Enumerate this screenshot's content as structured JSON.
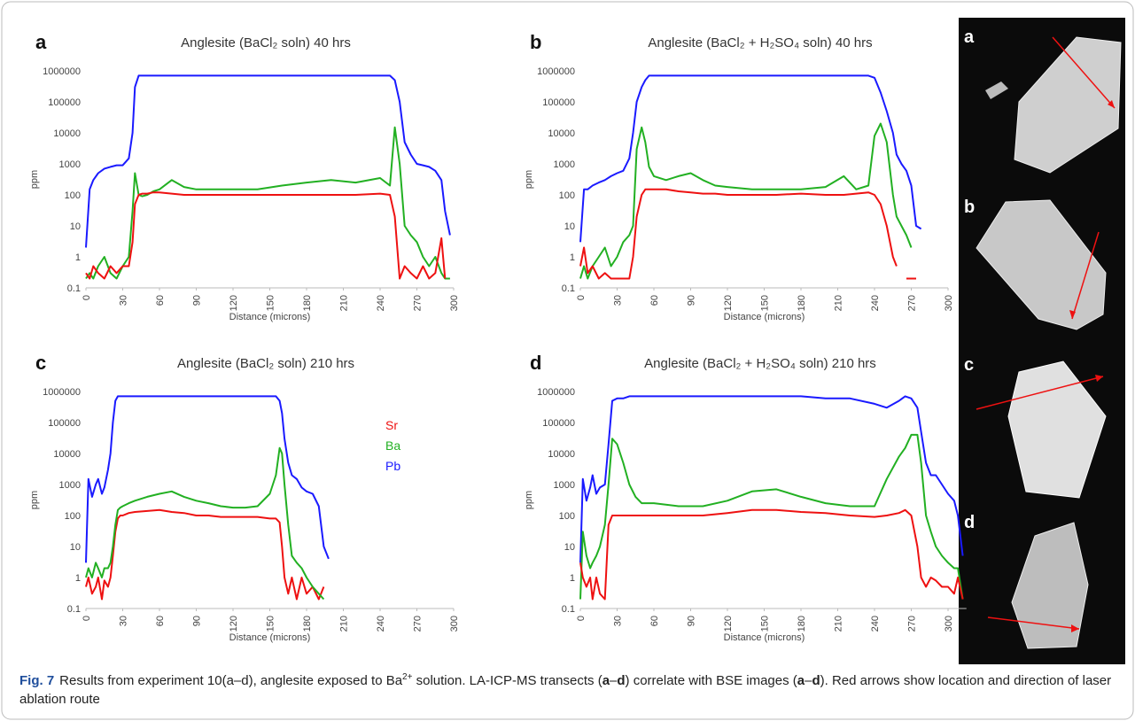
{
  "chart_data": [
    {
      "type": "line",
      "panel": "a",
      "title": "Anglesite (BaCl₂ soln) 40 hrs",
      "x_label": "Distance (microns)",
      "y_label": "ppm",
      "log_y": true,
      "grid": false,
      "legend": false,
      "xlim": [
        0,
        300
      ],
      "xticks": [
        0,
        30,
        60,
        90,
        120,
        150,
        180,
        210,
        240,
        270,
        300
      ],
      "ylim": [
        0.1,
        1000000
      ],
      "yticks": [
        0.1,
        1,
        10,
        100,
        1000,
        10000,
        100000,
        1000000
      ],
      "x": [
        0,
        3,
        6,
        10,
        15,
        20,
        25,
        30,
        35,
        38,
        40,
        43,
        46,
        50,
        55,
        60,
        70,
        80,
        90,
        100,
        120,
        140,
        160,
        180,
        200,
        220,
        240,
        248,
        252,
        256,
        260,
        265,
        270,
        275,
        280,
        285,
        290,
        293,
        297
      ],
      "series": [
        {
          "name": "Pb",
          "color": "#1a1aff",
          "values": [
            2,
            150,
            300,
            500,
            700,
            800,
            900,
            900,
            1500,
            10000,
            300000,
            700000,
            700000,
            700000,
            700000,
            700000,
            700000,
            700000,
            700000,
            700000,
            700000,
            700000,
            700000,
            700000,
            700000,
            700000,
            700000,
            700000,
            500000,
            100000,
            5000,
            2000,
            1000,
            900,
            800,
            600,
            300,
            30,
            5
          ]
        },
        {
          "name": "Ba",
          "color": "#22b022",
          "values": [
            0.2,
            0.3,
            0.2,
            0.5,
            1,
            0.3,
            0.2,
            0.5,
            1,
            30,
            500,
            100,
            90,
            100,
            130,
            150,
            300,
            180,
            150,
            150,
            150,
            150,
            200,
            250,
            300,
            250,
            350,
            200,
            15000,
            1000,
            10,
            5,
            3,
            1,
            0.5,
            1,
            0.3,
            0.2,
            0.2
          ]
        },
        {
          "name": "Sr",
          "color": "#ee1111",
          "values": [
            0.3,
            0.2,
            0.5,
            0.3,
            0.2,
            0.5,
            0.3,
            0.5,
            0.5,
            3,
            50,
            100,
            110,
            110,
            120,
            120,
            110,
            100,
            100,
            100,
            100,
            100,
            100,
            100,
            100,
            100,
            110,
            100,
            20,
            0.2,
            0.5,
            0.3,
            0.2,
            0.5,
            0.2,
            0.3,
            4,
            0.2,
            null
          ]
        }
      ]
    },
    {
      "type": "line",
      "panel": "b",
      "title": "Anglesite (BaCl₂ + H₂SO₄ soln) 40 hrs",
      "x_label": "Distance (microns)",
      "y_label": "ppm",
      "log_y": true,
      "grid": false,
      "legend": false,
      "xlim": [
        0,
        300
      ],
      "xticks": [
        0,
        30,
        60,
        90,
        120,
        150,
        180,
        210,
        240,
        270,
        300
      ],
      "ylim": [
        0.1,
        1000000
      ],
      "yticks": [
        0.1,
        1,
        10,
        100,
        1000,
        10000,
        100000,
        1000000
      ],
      "x": [
        0,
        3,
        6,
        10,
        15,
        20,
        25,
        30,
        35,
        40,
        43,
        46,
        50,
        53,
        56,
        60,
        70,
        80,
        90,
        100,
        110,
        120,
        140,
        160,
        180,
        200,
        215,
        225,
        235,
        240,
        245,
        250,
        255,
        258,
        262,
        266,
        270,
        274,
        278
      ],
      "series": [
        {
          "name": "Pb",
          "color": "#1a1aff",
          "values": [
            3,
            150,
            150,
            200,
            250,
            300,
            400,
            500,
            600,
            1500,
            10000,
            100000,
            300000,
            500000,
            700000,
            700000,
            700000,
            700000,
            700000,
            700000,
            700000,
            700000,
            700000,
            700000,
            700000,
            700000,
            700000,
            700000,
            700000,
            600000,
            200000,
            50000,
            10000,
            2000,
            1000,
            600,
            200,
            10,
            8
          ]
        },
        {
          "name": "Ba",
          "color": "#22b022",
          "values": [
            0.2,
            0.5,
            0.2,
            0.5,
            1,
            2,
            0.5,
            1,
            3,
            5,
            10,
            3000,
            15000,
            5000,
            800,
            400,
            300,
            400,
            500,
            300,
            200,
            180,
            150,
            150,
            150,
            180,
            400,
            150,
            200,
            8000,
            20000,
            5000,
            100,
            20,
            10,
            5,
            2,
            null,
            null
          ]
        },
        {
          "name": "Sr",
          "color": "#ee1111",
          "values": [
            0.5,
            2,
            0.3,
            0.5,
            0.2,
            0.3,
            0.2,
            0.2,
            0.2,
            0.2,
            1,
            20,
            100,
            150,
            150,
            150,
            150,
            130,
            120,
            110,
            110,
            100,
            100,
            100,
            110,
            100,
            100,
            110,
            120,
            100,
            50,
            10,
            1,
            0.5,
            null,
            0.2,
            0.2,
            0.2,
            null
          ]
        }
      ]
    },
    {
      "type": "line",
      "panel": "c",
      "title": "Anglesite (BaCl₂ soln) 210 hrs",
      "x_label": "Distance (microns)",
      "y_label": "ppm",
      "log_y": true,
      "grid": false,
      "legend": true,
      "legend_position": "top-right",
      "xlim": [
        0,
        300
      ],
      "xticks": [
        0,
        30,
        60,
        90,
        120,
        150,
        180,
        210,
        240,
        270,
        300
      ],
      "ylim": [
        0.1,
        1000000
      ],
      "yticks": [
        0.1,
        1,
        10,
        100,
        1000,
        10000,
        100000,
        1000000
      ],
      "x": [
        0,
        2,
        5,
        8,
        10,
        13,
        15,
        18,
        20,
        22,
        24,
        26,
        28,
        30,
        35,
        40,
        50,
        60,
        70,
        80,
        90,
        100,
        110,
        120,
        130,
        140,
        150,
        155,
        158,
        160,
        162,
        165,
        168,
        172,
        176,
        180,
        185,
        190,
        194,
        198
      ],
      "series": [
        {
          "name": "Sr",
          "color": "#ee1111",
          "values": [
            0.5,
            1,
            0.3,
            0.5,
            1,
            0.2,
            0.8,
            0.5,
            1,
            5,
            30,
            80,
            100,
            100,
            120,
            130,
            140,
            150,
            130,
            120,
            100,
            100,
            90,
            90,
            90,
            90,
            80,
            80,
            60,
            10,
            1,
            0.3,
            1,
            0.2,
            1,
            0.3,
            0.5,
            0.2,
            0.5,
            null
          ]
        },
        {
          "name": "Ba",
          "color": "#22b022",
          "values": [
            1,
            2,
            1,
            3,
            2,
            1,
            2,
            2,
            3,
            10,
            50,
            150,
            180,
            200,
            250,
            300,
            400,
            500,
            600,
            400,
            300,
            250,
            200,
            180,
            180,
            200,
            500,
            2000,
            15000,
            10000,
            1000,
            50,
            5,
            3,
            2,
            1,
            0.5,
            0.3,
            0.2,
            null
          ]
        },
        {
          "name": "Pb",
          "color": "#1a1aff",
          "values": [
            3,
            1500,
            400,
            1000,
            1500,
            500,
            800,
            3000,
            10000,
            100000,
            500000,
            700000,
            700000,
            700000,
            700000,
            700000,
            700000,
            700000,
            700000,
            700000,
            700000,
            700000,
            700000,
            700000,
            700000,
            700000,
            700000,
            700000,
            500000,
            200000,
            30000,
            5000,
            2000,
            1500,
            800,
            600,
            500,
            200,
            10,
            4
          ]
        }
      ]
    },
    {
      "type": "line",
      "panel": "d",
      "title": "Anglesite (BaCl₂ + H₂SO₄ soln) 210 hrs",
      "x_label": "Distance (microns)",
      "y_label": "ppm",
      "log_y": true,
      "grid": false,
      "legend": false,
      "xlim": [
        0,
        315
      ],
      "xticks": [
        0,
        30,
        60,
        90,
        120,
        150,
        180,
        210,
        240,
        270,
        300
      ],
      "ylim": [
        0.1,
        1000000
      ],
      "yticks": [
        0.1,
        1,
        10,
        100,
        1000,
        10000,
        100000,
        1000000
      ],
      "x": [
        0,
        2,
        5,
        8,
        10,
        13,
        16,
        20,
        23,
        26,
        30,
        35,
        40,
        45,
        50,
        60,
        80,
        100,
        120,
        140,
        160,
        180,
        200,
        220,
        240,
        250,
        260,
        265,
        270,
        275,
        278,
        282,
        286,
        290,
        295,
        300,
        305,
        308,
        312
      ],
      "series": [
        {
          "name": "Pb",
          "color": "#1a1aff",
          "values": [
            3,
            1500,
            300,
            800,
            2000,
            500,
            800,
            1000,
            20000,
            500000,
            600000,
            600000,
            700000,
            700000,
            700000,
            700000,
            700000,
            700000,
            700000,
            700000,
            700000,
            700000,
            600000,
            600000,
            400000,
            300000,
            500000,
            700000,
            600000,
            300000,
            50000,
            5000,
            2000,
            2000,
            1000,
            500,
            300,
            100,
            5
          ]
        },
        {
          "name": "Ba",
          "color": "#22b022",
          "values": [
            0.2,
            30,
            5,
            2,
            3,
            5,
            10,
            50,
            1000,
            30000,
            20000,
            5000,
            1000,
            400,
            250,
            250,
            200,
            200,
            300,
            600,
            700,
            400,
            250,
            200,
            200,
            1500,
            8000,
            15000,
            40000,
            40000,
            5000,
            100,
            30,
            10,
            5,
            3,
            2,
            2,
            0.2
          ]
        },
        {
          "name": "Sr",
          "color": "#ee1111",
          "values": [
            3,
            1,
            0.5,
            1,
            0.2,
            1,
            0.3,
            0.2,
            50,
            100,
            100,
            100,
            100,
            100,
            100,
            100,
            100,
            100,
            120,
            150,
            150,
            130,
            120,
            100,
            90,
            100,
            120,
            150,
            100,
            10,
            1,
            0.5,
            1,
            0.8,
            0.5,
            0.5,
            0.3,
            1,
            0.2
          ]
        }
      ]
    }
  ],
  "bse_images": [
    {
      "label": "a"
    },
    {
      "label": "b"
    },
    {
      "label": "c"
    },
    {
      "label": "d"
    }
  ],
  "caption": {
    "label": "Fig. 7",
    "text": [
      "Results from experiment 10(a–d), anglesite exposed to Ba",
      "2+",
      " solution. LA-ICP-MS transects (",
      "a",
      "–",
      "d",
      ") correlate with BSE images (",
      "a",
      "–",
      "d",
      "). Red arrows show location and direction of laser ablation route"
    ]
  }
}
